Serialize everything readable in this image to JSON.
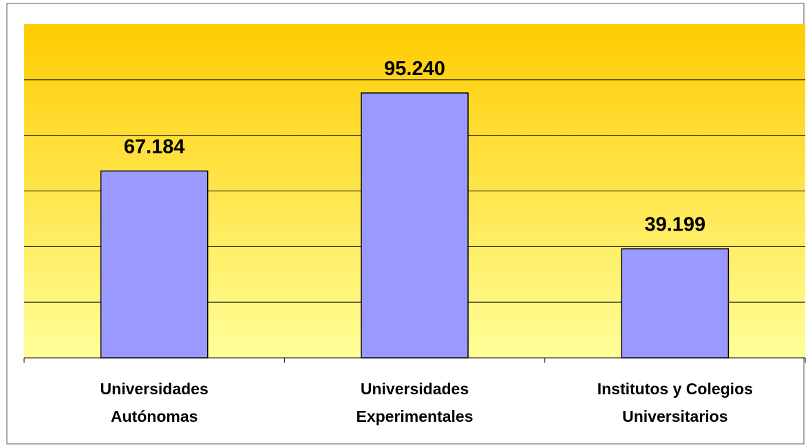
{
  "chart_data": {
    "type": "bar",
    "categories": [
      "Universidades\nAutónomas",
      "Universidades\nExperimentales",
      "Institutos y Colegios\nUniversitarios"
    ],
    "values": [
      67184,
      95240,
      39199
    ],
    "value_labels": [
      "67.184",
      "95.240",
      "39.199"
    ],
    "color": "#9999ff",
    "ylim": [
      0,
      120000
    ],
    "yticks": [
      0,
      20000,
      40000,
      60000,
      80000,
      100000,
      120000
    ],
    "grid": true
  }
}
